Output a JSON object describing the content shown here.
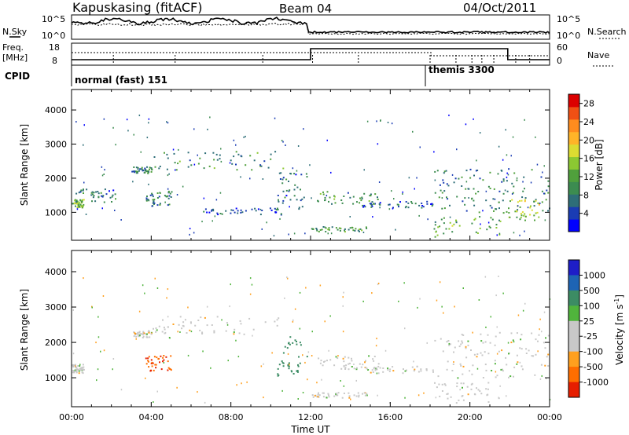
{
  "header": {
    "station": "Kapuskasing (fitACF)",
    "beam": "Beam 04",
    "date": "04/Oct/2011"
  },
  "noise_panel": {
    "left_label": "N.Sky",
    "right_label": "N.Search",
    "left_ticks": [
      "10^5",
      "10^0"
    ],
    "right_ticks": [
      "10^5",
      "10^0"
    ]
  },
  "freq_panel": {
    "left_label": "Freq.",
    "left_unit": "[MHz]",
    "right_label": "Nave",
    "left_ticks": [
      "18",
      "8"
    ],
    "right_ticks": [
      "60",
      "0"
    ]
  },
  "cpid_panel": {
    "label": "CPID",
    "modes": [
      {
        "name": "normal (fast) 151",
        "start_ut": 0.0
      },
      {
        "name": "themis 3300",
        "start_ut": 18.05
      }
    ]
  },
  "time_axis": {
    "title": "Time UT",
    "ticks": [
      "00:00",
      "04:00",
      "08:00",
      "12:00",
      "16:00",
      "20:00",
      "00:00"
    ]
  },
  "colors": {
    "power_scale": [
      "#0000ff",
      "#1a3cb4",
      "#2e6e78",
      "#3c8c50",
      "#50a03c",
      "#8cc832",
      "#dcdc32",
      "#ffb428",
      "#ff8c1e",
      "#f05014",
      "#dc0000"
    ],
    "velocity_scale": [
      "#1e1ec8",
      "#1e64b4",
      "#3c8c64",
      "#50b43c",
      "#c8c8c8",
      "#c8c8c8",
      "#ffa01e",
      "#ff6e00",
      "#e61e00"
    ]
  },
  "chart_data": [
    {
      "type": "heatmap",
      "title": "",
      "xlabel": "Time UT",
      "ylabel": "Slant Range [km]",
      "xlim": [
        0,
        24
      ],
      "ylim": [
        180,
        4600
      ],
      "y_ticks": [
        "1000",
        "2000",
        "3000",
        "4000"
      ],
      "colorbar": {
        "label": "Power [dB]",
        "ticks": [
          "4",
          "8",
          "12",
          "16",
          "20",
          "24",
          "28"
        ],
        "range": [
          0,
          30
        ]
      },
      "scatter_regions": [
        {
          "t_start": 0.0,
          "t_end": 0.6,
          "range_low": 1150,
          "range_high": 1400,
          "power": 13
        },
        {
          "t_start": 0.1,
          "t_end": 2.2,
          "range_low": 1300,
          "range_high": 1700,
          "power": 6
        },
        {
          "t_start": 3.0,
          "t_end": 4.0,
          "range_low": 2150,
          "range_high": 2350,
          "power": 8
        },
        {
          "t_start": 4.0,
          "t_end": 10.7,
          "range_low": 2250,
          "range_high": 2800,
          "power": 9
        },
        {
          "t_start": 3.7,
          "t_end": 5.0,
          "range_low": 1200,
          "range_high": 1650,
          "power": 7
        },
        {
          "t_start": 6.5,
          "t_end": 10.5,
          "range_low": 950,
          "range_high": 1150,
          "power": 4
        },
        {
          "t_start": 10.3,
          "t_end": 11.8,
          "range_low": 1050,
          "range_high": 2200,
          "power": 6
        },
        {
          "t_start": 12.3,
          "t_end": 15.5,
          "range_low": 1250,
          "range_high": 1650,
          "power": 9
        },
        {
          "t_start": 12.0,
          "t_end": 14.8,
          "range_low": 450,
          "range_high": 600,
          "power": 10
        },
        {
          "t_start": 14.5,
          "t_end": 18.2,
          "range_low": 1150,
          "range_high": 1350,
          "power": 5
        },
        {
          "t_start": 18.1,
          "t_end": 21.5,
          "range_low": 300,
          "range_high": 900,
          "power": 12
        },
        {
          "t_start": 18.2,
          "t_end": 24.0,
          "range_low": 1000,
          "range_high": 2300,
          "power": 8
        },
        {
          "t_start": 21.8,
          "t_end": 23.5,
          "range_low": 750,
          "range_high": 1400,
          "power": 15
        }
      ]
    },
    {
      "type": "heatmap",
      "title": "",
      "xlabel": "Time UT",
      "ylabel": "Slant Range [km]",
      "xlim": [
        0,
        24
      ],
      "ylim": [
        180,
        4600
      ],
      "y_ticks": [
        "1000",
        "2000",
        "3000",
        "4000"
      ],
      "colorbar": {
        "label": "Velocity [m s^-1]",
        "ticks": [
          "1000",
          "500",
          "100",
          "25",
          "-25",
          "-100",
          "-500",
          "-1000"
        ]
      },
      "scatter_regions": [
        {
          "t_start": 0.0,
          "t_end": 0.6,
          "range_low": 1150,
          "range_high": 1400,
          "velocity": 0
        },
        {
          "t_start": 3.0,
          "t_end": 4.0,
          "range_low": 2150,
          "range_high": 2350,
          "velocity": 0
        },
        {
          "t_start": 4.0,
          "t_end": 10.7,
          "range_low": 2250,
          "range_high": 2800,
          "velocity": 0
        },
        {
          "t_start": 3.7,
          "t_end": 5.0,
          "range_low": 1200,
          "range_high": 1650,
          "velocity": -500
        },
        {
          "t_start": 10.3,
          "t_end": 11.8,
          "range_low": 1050,
          "range_high": 2200,
          "velocity": 150
        },
        {
          "t_start": 12.3,
          "t_end": 15.5,
          "range_low": 1250,
          "range_high": 1650,
          "velocity": 0
        },
        {
          "t_start": 12.0,
          "t_end": 14.8,
          "range_low": 450,
          "range_high": 600,
          "velocity": 0
        },
        {
          "t_start": 14.5,
          "t_end": 18.2,
          "range_low": 1150,
          "range_high": 1350,
          "velocity": 0
        },
        {
          "t_start": 18.1,
          "t_end": 21.5,
          "range_low": 300,
          "range_high": 900,
          "velocity": 0
        },
        {
          "t_start": 18.2,
          "t_end": 24.0,
          "range_low": 1000,
          "range_high": 2300,
          "velocity": 0
        }
      ]
    }
  ]
}
